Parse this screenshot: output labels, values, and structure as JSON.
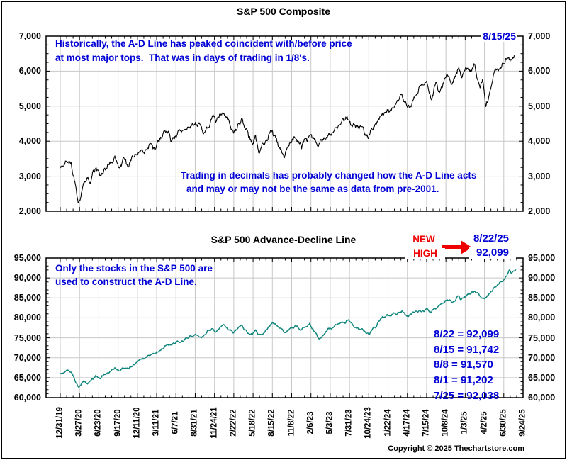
{
  "colors": {
    "annotation_blue": "#0000d6",
    "highlight_red": "#ee0000",
    "sp_line": "#000000",
    "ad_line": "#0e867c",
    "grid": "#c8c8c8",
    "frame": "#000000",
    "background": "#ffffff"
  },
  "top_chart": {
    "title": "S&P 500 Composite",
    "annotation_1a": "Historically, the A-D Line has peaked coincident with/before price",
    "annotation_1b": "at most major tops.  That was in days of trading in 1/8's.",
    "annotation_2a": "Trading in decimals has probably changed how the A-D Line acts",
    "annotation_2b": "and may or may not be the same as data from pre-2001.",
    "last_date_label": "8/15/25"
  },
  "bottom_chart": {
    "title": "S&P 500 Advance-Decline Line",
    "annotation_1a": "Only the stocks in the S&P 500 are",
    "annotation_1b": "used to construct the A-D Line.",
    "new_high_line1": "NEW",
    "new_high_line2": "HIGH",
    "new_high_date": "8/22/25",
    "new_high_value": "92,099",
    "callouts": [
      "8/22 = 92,099",
      "8/15 = 91,742",
      "8/8 = 91,570",
      "8/1 = 91,202",
      "7/25 = 92,038"
    ]
  },
  "footer": {
    "copyright": "Copyright © 2025 Thechartstore.com"
  },
  "chart_data": [
    {
      "type": "line",
      "title": "S&P 500 Composite",
      "name": "S&P 500 Composite daily close",
      "color": "#000000",
      "ylim": [
        2000,
        7000
      ],
      "y_major": 1000,
      "y_minor": 250,
      "y_tick_labels": [
        "7,000",
        "6,000",
        "5,000",
        "4,000",
        "3,000",
        "2,000"
      ],
      "x_tick_labels": [
        "12/31/19",
        "3/27/20",
        "6/23/20",
        "9/17/20",
        "12/11/20",
        "3/11/21",
        "6/7/21",
        "8/31/21",
        "11/24/21",
        "2/22/22",
        "5/18/22",
        "8/15/22",
        "11/8/22",
        "2/6/23",
        "5/3/23",
        "7/31/23",
        "10/24/23",
        "1/22/24",
        "4/17/24",
        "7/15/24",
        "10/8/24",
        "1/3/25",
        "4/2/25",
        "6/30/25",
        "9/24/25"
      ],
      "last_point_label": "8/15/25",
      "points": [
        [
          0,
          3231
        ],
        [
          0.2,
          3330
        ],
        [
          0.57,
          3386
        ],
        [
          0.95,
          2237
        ],
        [
          1.15,
          2660
        ],
        [
          1.38,
          2940
        ],
        [
          1.54,
          2820
        ],
        [
          1.84,
          3232
        ],
        [
          2.05,
          3009
        ],
        [
          2.4,
          3215
        ],
        [
          2.83,
          3580
        ],
        [
          3.07,
          3237
        ],
        [
          3.29,
          3534
        ],
        [
          3.5,
          3270
        ],
        [
          3.8,
          3550
        ],
        [
          4.2,
          3756
        ],
        [
          4.69,
          3935
        ],
        [
          4.92,
          3768
        ],
        [
          5.3,
          4130
        ],
        [
          5.65,
          4233
        ],
        [
          5.71,
          4063
        ],
        [
          6.09,
          4255
        ],
        [
          6.6,
          4400
        ],
        [
          7.0,
          4537
        ],
        [
          7.37,
          4300
        ],
        [
          7.88,
          4705
        ],
        [
          8.06,
          4538
        ],
        [
          8.41,
          4797
        ],
        [
          8.99,
          4226
        ],
        [
          9.39,
          4631
        ],
        [
          9.97,
          3901
        ],
        [
          10.13,
          4177
        ],
        [
          10.29,
          3667
        ],
        [
          10.99,
          4305
        ],
        [
          11.64,
          3577
        ],
        [
          12.2,
          4080
        ],
        [
          12.52,
          3783
        ],
        [
          12.94,
          4180
        ],
        [
          13.39,
          3856
        ],
        [
          13.9,
          4170
        ],
        [
          14.4,
          4410
        ],
        [
          14.94,
          4607
        ],
        [
          15.5,
          4350
        ],
        [
          16.0,
          4117
        ],
        [
          16.71,
          4783
        ],
        [
          17.2,
          4950
        ],
        [
          17.75,
          5254
        ],
        [
          18.0,
          4967
        ],
        [
          18.5,
          5350
        ],
        [
          19.02,
          5667
        ],
        [
          19.24,
          5186
        ],
        [
          19.53,
          5648
        ],
        [
          19.61,
          5408
        ],
        [
          20.09,
          5864
        ],
        [
          20.35,
          5700
        ],
        [
          20.65,
          6090
        ],
        [
          20.8,
          5867
        ],
        [
          21.2,
          6040
        ],
        [
          21.51,
          6144
        ],
        [
          21.77,
          5521
        ],
        [
          21.9,
          5776
        ],
        [
          22.06,
          4983
        ],
        [
          22.3,
          5460
        ],
        [
          22.5,
          5958
        ],
        [
          22.75,
          6050
        ],
        [
          23.02,
          6205
        ],
        [
          23.37,
          6339
        ],
        [
          23.54,
          6450
        ]
      ]
    },
    {
      "type": "line",
      "title": "S&P 500 Advance-Decline Line",
      "name": "S&P 500 cumulative advance-decline line",
      "color": "#0e867c",
      "ylim": [
        60000,
        95000
      ],
      "y_major": 5000,
      "y_minor": 1000,
      "y_tick_labels": [
        "95,000",
        "90,000",
        "85,000",
        "80,000",
        "75,000",
        "70,000",
        "65,000",
        "60,000"
      ],
      "x_tick_labels": [
        "12/31/19",
        "3/27/20",
        "6/23/20",
        "9/17/20",
        "12/11/20",
        "3/11/21",
        "6/7/21",
        "8/31/21",
        "11/24/21",
        "2/22/22",
        "5/18/22",
        "8/15/22",
        "11/8/22",
        "2/6/23",
        "5/3/23",
        "7/31/23",
        "10/24/23",
        "1/22/24",
        "4/17/24",
        "7/15/24",
        "10/8/24",
        "1/3/25",
        "4/2/25",
        "6/30/25",
        "9/24/25"
      ],
      "last_point_label": "8/22/25",
      "labeled_values": [
        {
          "date": "8/22",
          "value": 92099
        },
        {
          "date": "8/15",
          "value": 91742
        },
        {
          "date": "8/8",
          "value": 91570
        },
        {
          "date": "8/1",
          "value": 91202
        },
        {
          "date": "7/25",
          "value": 92038
        }
      ],
      "points": [
        [
          0,
          66000
        ],
        [
          0.35,
          66950
        ],
        [
          0.57,
          66400
        ],
        [
          0.95,
          62650
        ],
        [
          1.2,
          64200
        ],
        [
          1.45,
          63700
        ],
        [
          1.84,
          65600
        ],
        [
          2.05,
          64800
        ],
        [
          2.5,
          66200
        ],
        [
          2.83,
          67500
        ],
        [
          3.07,
          66700
        ],
        [
          3.5,
          67300
        ],
        [
          3.9,
          68500
        ],
        [
          4.2,
          69700
        ],
        [
          4.9,
          71000
        ],
        [
          5.3,
          72200
        ],
        [
          5.65,
          73300
        ],
        [
          6.1,
          74100
        ],
        [
          6.6,
          74900
        ],
        [
          7.0,
          75900
        ],
        [
          7.37,
          75300
        ],
        [
          7.88,
          77300
        ],
        [
          8.06,
          76400
        ],
        [
          8.41,
          78200
        ],
        [
          8.99,
          76200
        ],
        [
          9.39,
          78100
        ],
        [
          9.97,
          75900
        ],
        [
          10.13,
          77000
        ],
        [
          10.29,
          75800
        ],
        [
          10.99,
          78700
        ],
        [
          11.64,
          76300
        ],
        [
          12.2,
          78200
        ],
        [
          12.52,
          77000
        ],
        [
          12.94,
          78700
        ],
        [
          13.39,
          74800
        ],
        [
          13.9,
          77400
        ],
        [
          14.4,
          78500
        ],
        [
          14.94,
          79500
        ],
        [
          15.5,
          77200
        ],
        [
          16.0,
          75800
        ],
        [
          16.71,
          80300
        ],
        [
          17.2,
          80900
        ],
        [
          17.75,
          81700
        ],
        [
          18.0,
          80500
        ],
        [
          18.5,
          81600
        ],
        [
          19.02,
          82400
        ],
        [
          19.24,
          81300
        ],
        [
          19.6,
          82900
        ],
        [
          20.09,
          84400
        ],
        [
          20.35,
          83900
        ],
        [
          20.65,
          85500
        ],
        [
          20.8,
          84600
        ],
        [
          21.2,
          85900
        ],
        [
          21.51,
          86600
        ],
        [
          21.77,
          85400
        ],
        [
          22.06,
          85100
        ],
        [
          22.3,
          86300
        ],
        [
          22.5,
          87600
        ],
        [
          22.75,
          88500
        ],
        [
          23.02,
          89600
        ],
        [
          23.3,
          92038
        ],
        [
          23.38,
          91202
        ],
        [
          23.46,
          91570
        ],
        [
          23.54,
          91742
        ],
        [
          23.62,
          92099
        ]
      ]
    }
  ]
}
